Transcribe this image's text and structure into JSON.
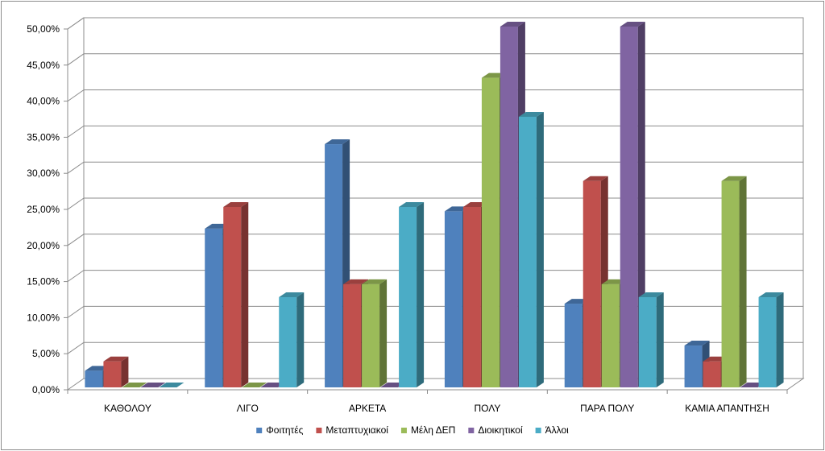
{
  "chart_data": {
    "type": "bar",
    "style": "3d-clustered-column",
    "categories": [
      "ΚΑΘΟΛΟΥ",
      "ΛΙΓΟ",
      "ΑΡΚΕΤΑ",
      "ΠΟΛΥ",
      "ΠΑΡΑ ΠΟΛΥ",
      "ΚΑΜΙΑ ΑΠΑΝΤΗΣΗ"
    ],
    "series": [
      {
        "name": "Φοιτητές",
        "color": "#4f81bd",
        "values": [
          2.3,
          22.0,
          33.7,
          24.4,
          11.6,
          5.8
        ]
      },
      {
        "name": "Μεταπτυχιακοί",
        "color": "#c0504d",
        "values": [
          3.6,
          25.0,
          14.3,
          25.0,
          28.6,
          3.6
        ]
      },
      {
        "name": "Μέλη ΔΕΠ",
        "color": "#9bbb59",
        "values": [
          0,
          0,
          14.3,
          42.9,
          14.3,
          28.6
        ]
      },
      {
        "name": "Διοικητικοί",
        "color": "#8064a2",
        "values": [
          0,
          0,
          0,
          50.0,
          50.0,
          0
        ]
      },
      {
        "name": "Άλλοι",
        "color": "#4bacc6",
        "values": [
          0,
          12.5,
          25.0,
          37.5,
          12.5,
          12.5
        ]
      }
    ],
    "y_ticks": [
      "0,00%",
      "5,00%",
      "10,00%",
      "15,00%",
      "20,00%",
      "25,00%",
      "30,00%",
      "35,00%",
      "40,00%",
      "45,00%",
      "50,00%"
    ],
    "ylim": [
      0,
      50
    ],
    "y_format": "percent",
    "grid": true,
    "legend_position": "bottom"
  }
}
